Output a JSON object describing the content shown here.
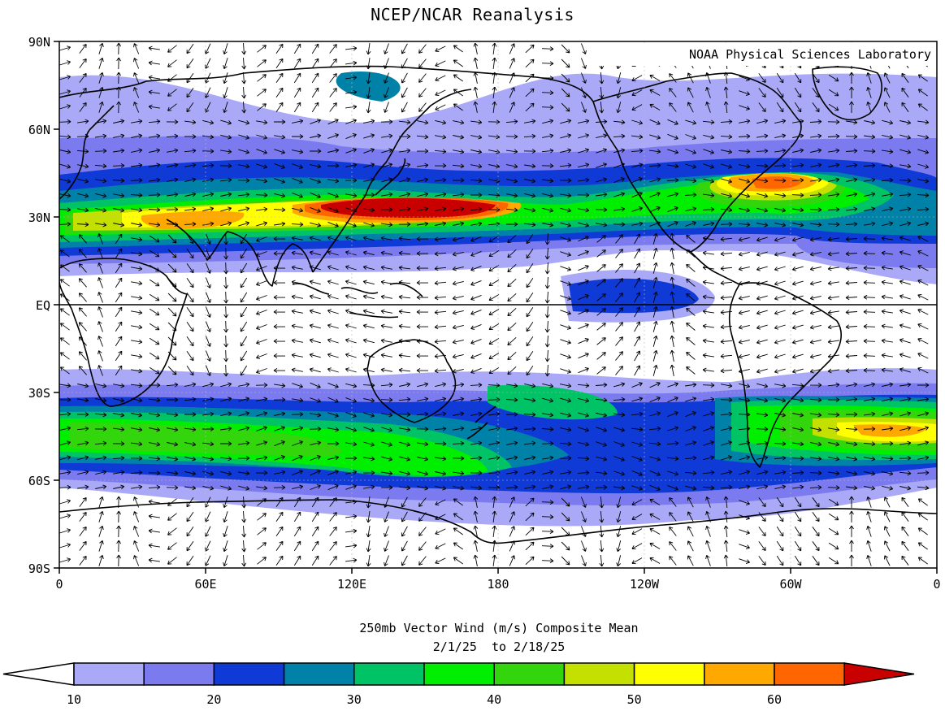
{
  "header": {
    "title": "NCEP/NCAR Reanalysis"
  },
  "credit": "NOAA Physical Sciences Laboratory",
  "axes": {
    "lat_labels": [
      "90N",
      "60N",
      "30N",
      "EQ",
      "30S",
      "60S",
      "90S"
    ],
    "lon_labels": [
      "0",
      "60E",
      "120E",
      "180",
      "120W",
      "60W",
      "0"
    ]
  },
  "caption": {
    "line1": "250mb Vector Wind (m/s) Composite Mean",
    "line2": "2/1/25  to 2/18/25"
  },
  "colorbar": {
    "unit": "m/s",
    "labels": [
      "10",
      "20",
      "30",
      "40",
      "50",
      "60"
    ],
    "colors": [
      "#a9a9f7",
      "#7b7bef",
      "#0f3ad6",
      "#0082a8",
      "#00c366",
      "#00ee00",
      "#33d60c",
      "#c4e000",
      "#ffff00",
      "#ffa800",
      "#ff6600",
      "#c80000"
    ]
  }
}
